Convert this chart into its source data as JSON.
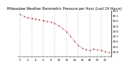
{
  "title": "Milwaukee Weather Barometric Pressure per Hour (Last 24 Hours)",
  "hours": [
    0,
    1,
    2,
    3,
    4,
    5,
    6,
    7,
    8,
    9,
    10,
    11,
    12,
    13,
    14,
    15,
    16,
    17,
    18,
    19,
    20,
    21,
    22,
    23
  ],
  "pressure": [
    30.12,
    30.08,
    30.06,
    30.05,
    30.03,
    30.02,
    30.0,
    29.99,
    29.97,
    29.95,
    29.9,
    29.85,
    29.78,
    29.7,
    29.6,
    29.52,
    29.47,
    29.44,
    29.42,
    29.45,
    29.43,
    29.42,
    29.4,
    29.38
  ],
  "line_color": "#ff0000",
  "marker_color": "#000000",
  "bg_color": "#ffffff",
  "grid_color": "#888888",
  "ylim": [
    29.3,
    30.2
  ],
  "yticks": [
    29.4,
    29.5,
    29.6,
    29.7,
    29.8,
    29.9,
    30.0,
    30.1,
    30.2
  ],
  "title_fontsize": 3.5,
  "tick_fontsize": 2.8,
  "grid_step": 3
}
